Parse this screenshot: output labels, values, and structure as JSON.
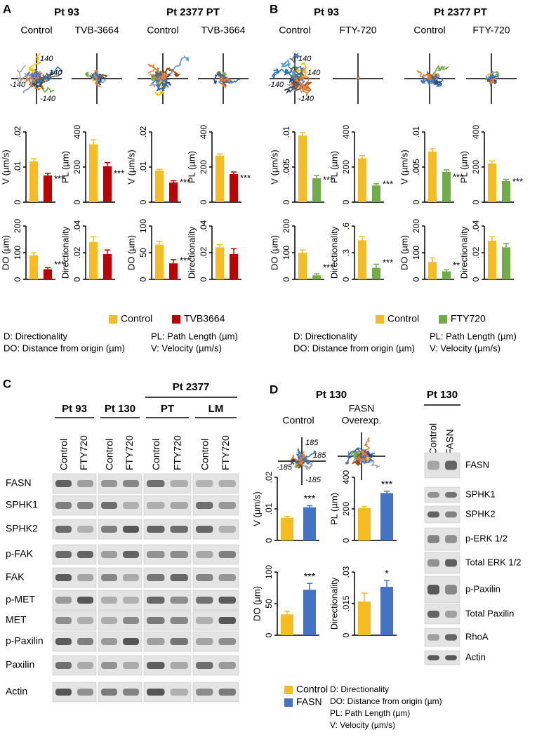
{
  "panel_labels": [
    "A",
    "B",
    "C",
    "D"
  ],
  "migration": [
    {
      "headers": [
        "Pt 93",
        "Pt 2377 PT"
      ],
      "conditions": [
        "Control",
        "TVB-3664",
        "Control",
        "TVB-3664"
      ],
      "axis_labels": [
        "140",
        "-140",
        "140",
        "-140"
      ],
      "legend": [
        {
          "name": "Control",
          "color": "#f5bd1f"
        },
        {
          "name": "TVB3664",
          "color": "#c00000"
        }
      ],
      "definitions": [
        "D: Directionality",
        "DO: Distance from origin (µm)",
        "PL: Path Length (µm)",
        "V: Velocity (µm/s)"
      ]
    },
    {
      "headers": [
        "Pt 93",
        "Pt 2377 PT"
      ],
      "conditions": [
        "Control",
        "FTY-720",
        "Control",
        "FTY-720"
      ],
      "axis_labels": [
        "140",
        "-140",
        "140",
        "-140"
      ],
      "legend": [
        {
          "name": "Control",
          "color": "#f5bd1f"
        },
        {
          "name": "FTY720",
          "color": "#70ad47"
        }
      ],
      "definitions": [
        "D: Directionality",
        "DO: Distance from origin (µm)",
        "PL: Path Length (µm)",
        "V: Velocity (µm/s)"
      ]
    }
  ],
  "chart_data": [
    {
      "type": "bar",
      "ylabel": "V (µm/s)",
      "values": [
        0.0116,
        0.0076
      ],
      "errors": [
        0.0008,
        0.0006
      ],
      "colors": [
        "#f5bd1f",
        "#c00000"
      ],
      "ylim": [
        0,
        0.02
      ],
      "yticks": [
        0,
        {
          "value": 0.01,
          "label": ".01"
        },
        {
          "value": 0.02,
          "label": ".02"
        }
      ],
      "annotation": "***"
    },
    {
      "type": "bar",
      "ylabel": "PL (µm)",
      "values": [
        330,
        205
      ],
      "errors": [
        25,
        20
      ],
      "colors": [
        "#f5bd1f",
        "#c00000"
      ],
      "ylim": [
        0,
        400
      ],
      "yticks": [
        0,
        200,
        400
      ],
      "annotation": "***"
    },
    {
      "type": "bar",
      "ylabel": "V (µm/s)",
      "values": [
        0.009,
        0.0056
      ],
      "errors": [
        0.0004,
        0.0005
      ],
      "colors": [
        "#f5bd1f",
        "#c00000"
      ],
      "ylim": [
        0,
        0.02
      ],
      "yticks": [
        0,
        {
          "value": 0.01,
          "label": ".01"
        },
        {
          "value": 0.02,
          "label": ".02"
        }
      ],
      "annotation": "***"
    },
    {
      "type": "bar",
      "ylabel": "PL (µm)",
      "values": [
        265,
        160
      ],
      "errors": [
        10,
        12
      ],
      "colors": [
        "#f5bd1f",
        "#c00000"
      ],
      "ylim": [
        0,
        400
      ],
      "yticks": [
        0,
        200,
        400
      ],
      "annotation": "***"
    },
    {
      "type": "bar",
      "ylabel": "DO (µm)",
      "values": [
        90,
        38
      ],
      "errors": [
        10,
        6
      ],
      "colors": [
        "#f5bd1f",
        "#c00000"
      ],
      "ylim": [
        0,
        200
      ],
      "yticks": [
        0,
        100,
        200
      ],
      "annotation": "***"
    },
    {
      "type": "bar",
      "ylabel": "Directionality",
      "values": [
        0.028,
        0.019
      ],
      "errors": [
        0.004,
        0.003
      ],
      "colors": [
        "#f5bd1f",
        "#c00000"
      ],
      "ylim": [
        0,
        0.04
      ],
      "yticks": [
        0,
        {
          "value": 0.02,
          "label": ".02"
        },
        {
          "value": 0.04,
          "label": ".04"
        }
      ]
    },
    {
      "type": "bar",
      "ylabel": "DO (µm)",
      "values": [
        65,
        30
      ],
      "errors": [
        6,
        7
      ],
      "colors": [
        "#f5bd1f",
        "#c00000"
      ],
      "ylim": [
        0,
        100
      ],
      "yticks": [
        0,
        50,
        100
      ],
      "annotation": "***"
    },
    {
      "type": "bar",
      "ylabel": "Directionality",
      "values": [
        0.024,
        0.019
      ],
      "errors": [
        0.002,
        0.004
      ],
      "colors": [
        "#f5bd1f",
        "#c00000"
      ],
      "ylim": [
        0,
        0.04
      ],
      "yticks": [
        0,
        {
          "value": 0.02,
          "label": ".02"
        },
        {
          "value": 0.04,
          "label": ".04"
        }
      ]
    },
    {
      "type": "bar",
      "ylabel": "V (µm/s)",
      "values": [
        0.0095,
        0.0034
      ],
      "errors": [
        0.0004,
        0.0004
      ],
      "colors": [
        "#f5bd1f",
        "#70ad47"
      ],
      "ylim": [
        0,
        0.01
      ],
      "yticks": [
        0,
        {
          "value": 0.005,
          "label": ".005"
        },
        {
          "value": 0.01,
          "label": ".01"
        }
      ],
      "annotation": "***"
    },
    {
      "type": "bar",
      "ylabel": "PL (µm)",
      "values": [
        250,
        95
      ],
      "errors": [
        15,
        10
      ],
      "colors": [
        "#f5bd1f",
        "#70ad47"
      ],
      "ylim": [
        0,
        400
      ],
      "yticks": [
        0,
        200,
        400
      ],
      "annotation": "***"
    },
    {
      "type": "bar",
      "ylabel": "V (µm/s)",
      "values": [
        0.0072,
        0.0043
      ],
      "errors": [
        0.0004,
        0.0003
      ],
      "colors": [
        "#f5bd1f",
        "#70ad47"
      ],
      "ylim": [
        0,
        0.01
      ],
      "yticks": [
        0,
        {
          "value": 0.005,
          "label": ".005"
        },
        {
          "value": 0.01,
          "label": ".01"
        }
      ],
      "annotation": "***"
    },
    {
      "type": "bar",
      "ylabel": "PL (µm)",
      "values": [
        220,
        120
      ],
      "errors": [
        15,
        10
      ],
      "colors": [
        "#f5bd1f",
        "#70ad47"
      ],
      "ylim": [
        0,
        400
      ],
      "yticks": [
        0,
        200,
        400
      ],
      "annotation": "***"
    },
    {
      "type": "bar",
      "ylabel": "DO (µm)",
      "values": [
        100,
        15
      ],
      "errors": [
        10,
        6
      ],
      "colors": [
        "#f5bd1f",
        "#70ad47"
      ],
      "ylim": [
        0,
        200
      ],
      "yticks": [
        0,
        100,
        200
      ],
      "annotation": "***"
    },
    {
      "type": "bar",
      "ylabel": "Directionality",
      "values": [
        0.44,
        0.13
      ],
      "errors": [
        0.04,
        0.04
      ],
      "colors": [
        "#f5bd1f",
        "#70ad47"
      ],
      "ylim": [
        0,
        0.6
      ],
      "yticks": [
        0,
        {
          "value": 0.3,
          "label": ".3"
        },
        {
          "value": 0.6,
          "label": ".6"
        }
      ],
      "annotation": "***"
    },
    {
      "type": "bar",
      "ylabel": "DO (µm)",
      "values": [
        65,
        30
      ],
      "errors": [
        15,
        6
      ],
      "colors": [
        "#f5bd1f",
        "#70ad47"
      ],
      "ylim": [
        0,
        200
      ],
      "yticks": [
        0,
        100,
        200
      ],
      "annotation": "**"
    },
    {
      "type": "bar",
      "ylabel": "Directionality",
      "values": [
        0.029,
        0.024
      ],
      "errors": [
        0.003,
        0.003
      ],
      "colors": [
        "#f5bd1f",
        "#70ad47"
      ],
      "ylim": [
        0,
        0.04
      ],
      "yticks": [
        0,
        {
          "value": 0.02,
          "label": ".02"
        },
        {
          "value": 0.04,
          "label": ".04"
        }
      ]
    },
    {
      "type": "bar",
      "ylabel": "V (µm/s)",
      "values": [
        0.0072,
        0.0105
      ],
      "errors": [
        0.0004,
        0.0005
      ],
      "colors": [
        "#f5bd1f",
        "#4472c4"
      ],
      "ylim": [
        0,
        0.02
      ],
      "yticks": [
        0,
        {
          "value": 0.01,
          "label": ".01"
        },
        {
          "value": 0.02,
          "label": ".02"
        }
      ],
      "annotation": "***"
    },
    {
      "type": "bar",
      "ylabel": "PL (µm)",
      "values": [
        205,
        300
      ],
      "errors": [
        10,
        12
      ],
      "colors": [
        "#f5bd1f",
        "#4472c4"
      ],
      "ylim": [
        0,
        400
      ],
      "yticks": [
        0,
        200,
        400
      ],
      "annotation": "***"
    },
    {
      "type": "bar",
      "ylabel": "DO (µm)",
      "values": [
        33,
        72
      ],
      "errors": [
        5,
        10
      ],
      "colors": [
        "#f5bd1f",
        "#4472c4"
      ],
      "ylim": [
        0,
        100
      ],
      "yticks": [
        0,
        50,
        100
      ],
      "annotation": "***"
    },
    {
      "type": "bar",
      "ylabel": "Directionality",
      "values": [
        0.016,
        0.023
      ],
      "errors": [
        0.004,
        0.003
      ],
      "colors": [
        "#f5bd1f",
        "#4472c4"
      ],
      "ylim": [
        0,
        0.03
      ],
      "yticks": [
        0,
        {
          "value": 0.015,
          "label": ".015"
        },
        {
          "value": 0.03,
          "label": ".03"
        }
      ],
      "annotation": "*"
    }
  ],
  "blot_c": {
    "title": "Pt 2377",
    "groups": [
      "Pt 93",
      "Pt 130",
      "PT",
      "LM"
    ],
    "lanes": [
      "Control",
      "FTY720",
      "Control",
      "FTY720",
      "Control",
      "FTY720",
      "Control",
      "FTY720"
    ],
    "proteins": [
      "FASN",
      "SPHK1",
      "SPHK2",
      "p-FAK",
      "FAK",
      "p-MET",
      "MET",
      "p-Paxilin",
      "Paxilin",
      "Actin"
    ]
  },
  "panel_d": {
    "title": "Pt 130",
    "conditions": [
      "Control",
      "FASN",
      "Overexp."
    ],
    "axis_labels": [
      "185",
      "-185",
      "185",
      "-185"
    ],
    "legend": [
      {
        "name": "Control",
        "color": "#f5bd1f"
      },
      {
        "name": "FASN",
        "color": "#4472c4"
      }
    ],
    "definitions": [
      "D: Directionality",
      "DO: Distance from origin (µm)",
      "PL: Path Length (µm)",
      "V: Velocity (µm/s)"
    ],
    "blot": {
      "title": "Pt 130",
      "lanes": [
        "Control",
        "FASN"
      ],
      "proteins": [
        "FASN",
        "SPHK1",
        "SPHK2",
        "p-ERK 1/2",
        "Total ERK 1/2",
        "p-Paxilin",
        "Total Paxilin",
        "RhoA",
        "Actin"
      ]
    }
  }
}
